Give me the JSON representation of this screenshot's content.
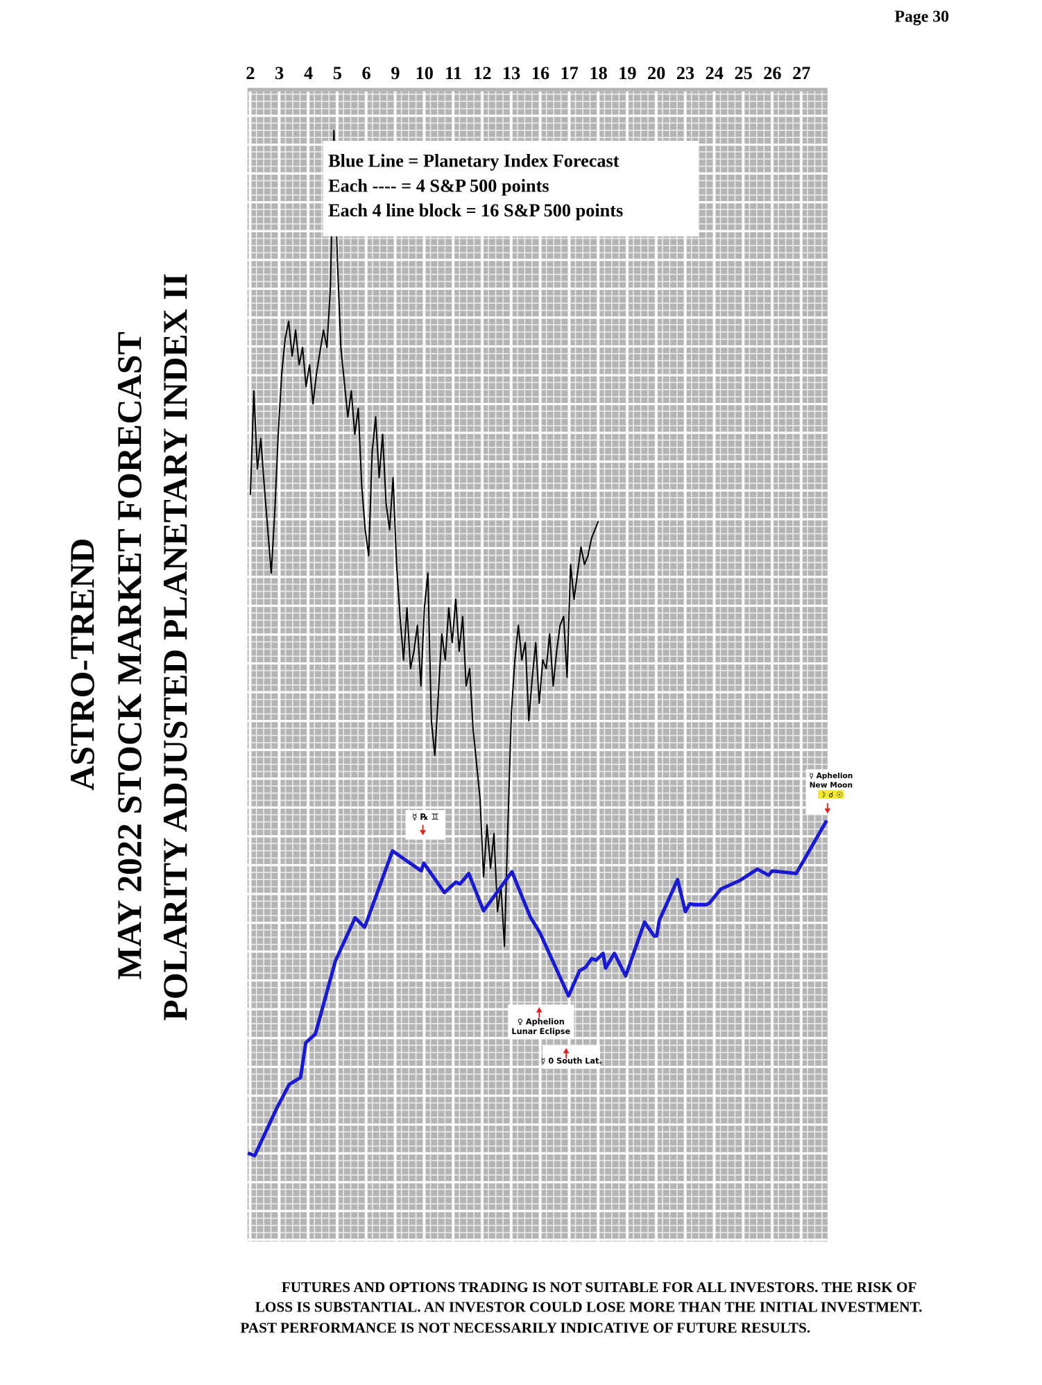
{
  "page_number": "Page  30",
  "chart_data": {
    "type": "line",
    "title_lines": [
      "ASTRO-TREND",
      "MAY 2022  STOCK MARKET FORECAST",
      "POLARITY ADJUSTED PLANETARY INDEX II"
    ],
    "legend_lines": [
      "Blue Line = Planetary Index Forecast",
      "Each ---- =   4 S&P 500 points",
      "Each 4 line block =  16  S&P 500 points"
    ],
    "xlim": [
      -0.1,
      19.9
    ],
    "xticks": [
      {
        "value": 0,
        "label": "2"
      },
      {
        "value": 1,
        "label": "3"
      },
      {
        "value": 2,
        "label": "4"
      },
      {
        "value": 3,
        "label": "5"
      },
      {
        "value": 4,
        "label": "6"
      },
      {
        "value": 5,
        "label": "9"
      },
      {
        "value": 6,
        "label": "10"
      },
      {
        "value": 7,
        "label": "11"
      },
      {
        "value": 8,
        "label": "12"
      },
      {
        "value": 9,
        "label": "13"
      },
      {
        "value": 10,
        "label": "16"
      },
      {
        "value": 11,
        "label": "17"
      },
      {
        "value": 12,
        "label": "18"
      },
      {
        "value": 13,
        "label": "19"
      },
      {
        "value": 14,
        "label": "20"
      },
      {
        "value": 15,
        "label": "23"
      },
      {
        "value": 16,
        "label": "24"
      },
      {
        "value": 17,
        "label": "25"
      },
      {
        "value": 18,
        "label": "26"
      },
      {
        "value": 19,
        "label": "27"
      }
    ],
    "ylim": [
      0,
      662.5
    ],
    "grid": true,
    "series": [
      {
        "color": "#000000",
        "x": [
          0,
          0.12,
          0.24,
          0.36,
          0.48,
          0.6,
          0.72,
          0.84,
          0.96,
          1.08,
          1.2,
          1.32,
          1.44,
          1.56,
          1.68,
          1.8,
          1.92,
          2.04,
          2.16,
          2.28,
          2.4,
          2.52,
          2.64,
          2.76,
          2.88,
          3,
          3.12,
          3.24,
          3.36,
          3.48,
          3.6,
          3.72,
          3.84,
          3.96,
          4.08,
          4.2,
          4.32,
          4.44,
          4.56,
          4.68,
          4.8,
          4.92,
          5.04,
          5.16,
          5.28,
          5.4,
          5.52,
          5.64,
          5.76,
          5.88,
          6,
          6.12,
          6.24,
          6.36,
          6.48,
          6.6,
          6.72,
          6.84,
          6.96,
          7.08,
          7.2,
          7.32,
          7.44,
          7.56,
          7.68,
          7.8,
          7.92,
          8.04,
          8.16,
          8.28,
          8.4,
          8.52,
          8.64,
          8.76,
          8.88,
          9,
          9.12,
          9.24,
          9.36,
          9.48,
          9.6,
          9.72,
          9.84,
          9.96,
          10.08,
          10.2,
          10.32,
          10.44,
          10.56,
          10.68,
          10.8,
          10.92,
          11.04,
          11.16,
          11.28,
          11.4,
          11.52,
          11.64,
          11.76,
          11.88,
          12
        ],
        "values": [
          430,
          490,
          445,
          462.5,
          435,
          410,
          385,
          420,
          465,
          500,
          520,
          530,
          510,
          525,
          505,
          515,
          492.5,
          505,
          482.5,
          500,
          512.5,
          525,
          515,
          550,
          640,
          565,
          515,
          495,
          475,
          490,
          465,
          480,
          435,
          410,
          395,
          455,
          475,
          440,
          465,
          425,
          410,
          440,
          390,
          360,
          335,
          365,
          330,
          340,
          355,
          320,
          365,
          385,
          300,
          280,
          315,
          350,
          335,
          365,
          345,
          370,
          340,
          360,
          320,
          330,
          295,
          275,
          255,
          210,
          240,
          215,
          235,
          190,
          205,
          170,
          240,
          305,
          335,
          355,
          335,
          345,
          300,
          325,
          345,
          310,
          335,
          330,
          350,
          320,
          340,
          355,
          360,
          325,
          390,
          370,
          385,
          400,
          390,
          395,
          405,
          410,
          415
        ]
      },
      {
        "color": "#1a1ad0",
        "x": [
          -0.09,
          0.15,
          0.9,
          1.34,
          1.73,
          1.91,
          2.24,
          2.93,
          3.61,
          3.94,
          4.9,
          5.89,
          5.98,
          6.69,
          7.08,
          7.23,
          7.53,
          8.04,
          9.02,
          9.65,
          9.98,
          10.97,
          11.35,
          11.56,
          11.77,
          11.92,
          12.16,
          12.25,
          12.55,
          12.94,
          13.59,
          13.92,
          14.01,
          14.1,
          14.73,
          15,
          15.15,
          15.33,
          15.71,
          15.83,
          16.22,
          16.88,
          17.48,
          17.87,
          17.99,
          18.82,
          19.87
        ],
        "values": [
          51,
          49.5,
          76.5,
          90.5,
          94.5,
          114.5,
          119.5,
          161.5,
          186.5,
          181,
          225,
          213.5,
          218,
          201,
          207,
          206,
          212,
          190.5,
          213,
          187,
          178,
          141.5,
          156,
          158,
          163,
          162,
          166,
          157.5,
          166,
          153,
          184,
          176,
          176,
          185,
          208.5,
          190,
          194.5,
          194,
          194,
          195,
          203,
          208,
          214.5,
          211,
          213.5,
          212,
          242.5
        ]
      }
    ],
    "annotations": [
      {
        "lines": [
          "☿ ℞ ♊"
        ]
      },
      {
        "lines": [
          "♀ Aphelion",
          "Lunar Eclipse"
        ]
      },
      {
        "lines": [
          "☿ 0 South Lat."
        ]
      },
      {
        "lines": [
          "☿ Aphelion",
          "New Moon",
          "☽ ☌ ☉"
        ]
      }
    ]
  },
  "disclaimer": [
    "FUTURES AND OPTIONS TRADING IS NOT SUITABLE FOR ALL INVESTORS.  THE RISK OF",
    "LOSS IS SUBSTANTIAL.  AN INVESTOR COULD LOSE MORE THAN THE INITIAL INVESTMENT.",
    "PAST PERFORMANCE IS NOT NECESSARILY INDICATIVE OF FUTURE RESULTS."
  ]
}
